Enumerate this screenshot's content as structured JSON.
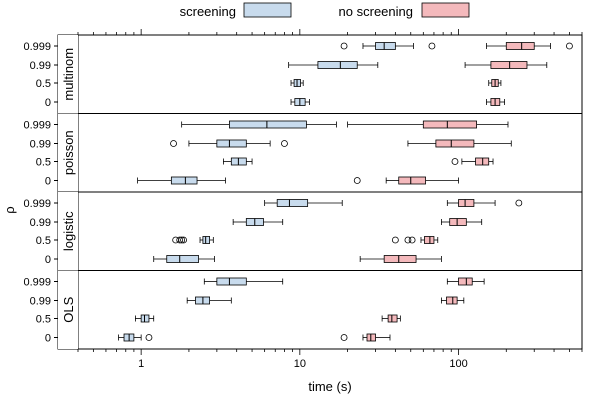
{
  "chart_data": {
    "type": "boxplot",
    "xlabel": "time (s)",
    "ylabel": "ρ",
    "x_scale": "log",
    "xlim": [
      0.4,
      600
    ],
    "x_ticks": [
      {
        "value": 1,
        "label": "1"
      },
      {
        "value": 10,
        "label": "10"
      },
      {
        "value": 100,
        "label": "100"
      }
    ],
    "legend": [
      {
        "name": "screening",
        "color": "#c8dbed"
      },
      {
        "name": "no screening",
        "color": "#f4b9bc"
      }
    ],
    "legend_position": "top",
    "rho_labels": [
      "0.999",
      "0.99",
      "0.5",
      "0"
    ],
    "panels": [
      {
        "label": "multinom",
        "groups": [
          {
            "rho": "0.999",
            "screening": {
              "whislo": 25,
              "q1": 30,
              "med": 34,
              "q3": 40,
              "whishi": 52,
              "outliers": [
                19,
                68
              ]
            },
            "no screening": {
              "whislo": 150,
              "q1": 200,
              "med": 250,
              "q3": 300,
              "whishi": 380,
              "outliers": [
                500
              ]
            }
          },
          {
            "rho": "0.99",
            "screening": {
              "whislo": 8.5,
              "q1": 13,
              "med": 18,
              "q3": 23,
              "whishi": 31,
              "outliers": []
            },
            "no screening": {
              "whislo": 110,
              "q1": 160,
              "med": 210,
              "q3": 270,
              "whishi": 360,
              "outliers": []
            }
          },
          {
            "rho": "0.5",
            "screening": {
              "whislo": 8.8,
              "q1": 9.2,
              "med": 9.6,
              "q3": 10.1,
              "whishi": 10.5,
              "outliers": []
            },
            "no screening": {
              "whislo": 155,
              "q1": 162,
              "med": 170,
              "q3": 178,
              "whishi": 185,
              "outliers": []
            }
          },
          {
            "rho": "0",
            "screening": {
              "whislo": 8.8,
              "q1": 9.3,
              "med": 10.0,
              "q3": 10.8,
              "whishi": 11.5,
              "outliers": []
            },
            "no screening": {
              "whislo": 150,
              "q1": 160,
              "med": 170,
              "q3": 182,
              "whishi": 195,
              "outliers": []
            }
          }
        ]
      },
      {
        "label": "poisson",
        "groups": [
          {
            "rho": "0.999",
            "screening": {
              "whislo": 1.8,
              "q1": 3.6,
              "med": 6.2,
              "q3": 11,
              "whishi": 17,
              "outliers": []
            },
            "no screening": {
              "whislo": 20,
              "q1": 60,
              "med": 85,
              "q3": 130,
              "whishi": 205,
              "outliers": []
            }
          },
          {
            "rho": "0.99",
            "screening": {
              "whislo": 2.0,
              "q1": 3.0,
              "med": 3.6,
              "q3": 4.6,
              "whishi": 6.5,
              "outliers": [
                1.6,
                8.0
              ]
            },
            "no screening": {
              "whislo": 48,
              "q1": 72,
              "med": 90,
              "q3": 125,
              "whishi": 215,
              "outliers": []
            }
          },
          {
            "rho": "0.5",
            "screening": {
              "whislo": 3.3,
              "q1": 3.7,
              "med": 4.1,
              "q3": 4.6,
              "whishi": 5.0,
              "outliers": []
            },
            "no screening": {
              "whislo": 105,
              "q1": 128,
              "med": 142,
              "q3": 155,
              "whishi": 165,
              "outliers": [
                95
              ]
            }
          },
          {
            "rho": "0",
            "screening": {
              "whislo": 0.95,
              "q1": 1.55,
              "med": 1.9,
              "q3": 2.25,
              "whishi": 3.4,
              "outliers": []
            },
            "no screening": {
              "whislo": 35,
              "q1": 42,
              "med": 50,
              "q3": 62,
              "whishi": 100,
              "outliers": [
                23
              ]
            }
          }
        ]
      },
      {
        "label": "logistic",
        "groups": [
          {
            "rho": "0.999",
            "screening": {
              "whislo": 6.0,
              "q1": 7.2,
              "med": 8.6,
              "q3": 11.2,
              "whishi": 18.5,
              "outliers": []
            },
            "no screening": {
              "whislo": 85,
              "q1": 100,
              "med": 110,
              "q3": 125,
              "whishi": 170,
              "outliers": [
                240
              ]
            }
          },
          {
            "rho": "0.99",
            "screening": {
              "whislo": 3.8,
              "q1": 4.6,
              "med": 5.2,
              "q3": 5.9,
              "whishi": 7.8,
              "outliers": []
            },
            "no screening": {
              "whislo": 78,
              "q1": 88,
              "med": 98,
              "q3": 112,
              "whishi": 140,
              "outliers": []
            }
          },
          {
            "rho": "0.5",
            "screening": {
              "whislo": 2.35,
              "q1": 2.45,
              "med": 2.55,
              "q3": 2.7,
              "whishi": 2.85,
              "outliers": [
                1.65,
                1.75,
                1.8,
                1.85
              ]
            },
            "no screening": {
              "whislo": 58,
              "q1": 61,
              "med": 66,
              "q3": 70,
              "whishi": 74,
              "outliers": [
                40,
                48,
                51
              ]
            }
          },
          {
            "rho": "0",
            "screening": {
              "whislo": 1.2,
              "q1": 1.45,
              "med": 1.75,
              "q3": 2.3,
              "whishi": 2.9,
              "outliers": []
            },
            "no screening": {
              "whislo": 24,
              "q1": 34,
              "med": 42,
              "q3": 54,
              "whishi": 78,
              "outliers": []
            }
          }
        ]
      },
      {
        "label": "OLS",
        "groups": [
          {
            "rho": "0.999",
            "screening": {
              "whislo": 2.5,
              "q1": 3.0,
              "med": 3.6,
              "q3": 4.6,
              "whishi": 7.8,
              "outliers": []
            },
            "no screening": {
              "whislo": 85,
              "q1": 100,
              "med": 112,
              "q3": 122,
              "whishi": 145,
              "outliers": []
            }
          },
          {
            "rho": "0.99",
            "screening": {
              "whislo": 1.95,
              "q1": 2.2,
              "med": 2.45,
              "q3": 2.7,
              "whishi": 3.7,
              "outliers": []
            },
            "no screening": {
              "whislo": 78,
              "q1": 84,
              "med": 92,
              "q3": 98,
              "whishi": 108,
              "outliers": []
            }
          },
          {
            "rho": "0.5",
            "screening": {
              "whislo": 0.92,
              "q1": 1.0,
              "med": 1.05,
              "q3": 1.12,
              "whishi": 1.2,
              "outliers": []
            },
            "no screening": {
              "whislo": 33,
              "q1": 36,
              "med": 38,
              "q3": 41,
              "whishi": 43,
              "outliers": []
            }
          },
          {
            "rho": "0",
            "screening": {
              "whislo": 0.72,
              "q1": 0.78,
              "med": 0.84,
              "q3": 0.9,
              "whishi": 1.0,
              "outliers": [
                1.12
              ]
            },
            "no screening": {
              "whislo": 25,
              "q1": 26.5,
              "med": 28,
              "q3": 30,
              "whishi": 37,
              "outliers": [
                19
              ]
            }
          }
        ]
      }
    ]
  }
}
